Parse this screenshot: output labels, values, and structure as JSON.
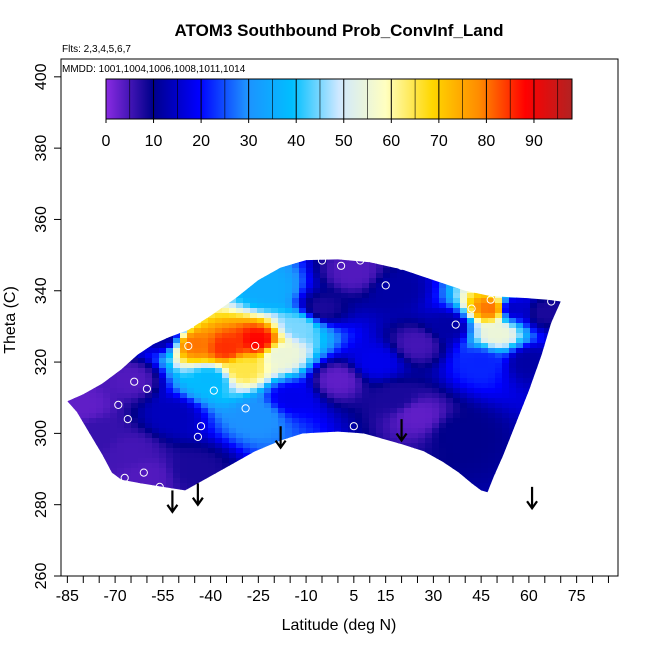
{
  "chart_data": {
    "type": "heatmap",
    "title": "ATOM3 Southbound Prob_ConvInf_Land",
    "flights_label": "Flts: 2,3,4,5,6,7",
    "dates_label": "MMDD: 1001,1004,1006,1008,1011,1014",
    "xlabel": "Latitude (deg N)",
    "ylabel": "Theta (C)",
    "xlim": [
      -87,
      88
    ],
    "ylim": [
      260,
      405
    ],
    "x_ticks": [
      -85,
      -70,
      -55,
      -40,
      -25,
      -10,
      5,
      15,
      30,
      45,
      60,
      75
    ],
    "x_minor_step": 5,
    "y_ticks": [
      260,
      280,
      300,
      320,
      340,
      360,
      380,
      400
    ],
    "colorbar": {
      "range": [
        0,
        98
      ],
      "ticks": [
        0,
        10,
        20,
        30,
        40,
        50,
        60,
        70,
        80,
        90
      ],
      "colors": [
        "#8a2be2",
        "#00008b",
        "#0000ff",
        "#1e90ff",
        "#00bfff",
        "#cfe8ff",
        "#ffffc0",
        "#ffd700",
        "#ff8c00",
        "#ff0000",
        "#b22222"
      ]
    },
    "field": {
      "boundary": [
        [
          -85,
          309
        ],
        [
          -82,
          306
        ],
        [
          -78,
          300
        ],
        [
          -74,
          294
        ],
        [
          -71,
          289
        ],
        [
          -68,
          287
        ],
        [
          -62,
          286
        ],
        [
          -55,
          285
        ],
        [
          -48,
          284
        ],
        [
          -42,
          287
        ],
        [
          -34,
          291
        ],
        [
          -26,
          295
        ],
        [
          -18,
          298
        ],
        [
          -11,
          300
        ],
        [
          0,
          300.5
        ],
        [
          8,
          300
        ],
        [
          14,
          298.5
        ],
        [
          20,
          297
        ],
        [
          27,
          295
        ],
        [
          33,
          292
        ],
        [
          38,
          289
        ],
        [
          42,
          286
        ],
        [
          45,
          284
        ],
        [
          47,
          283.5
        ],
        [
          49,
          288
        ],
        [
          52,
          294
        ],
        [
          56,
          303
        ],
        [
          60,
          312
        ],
        [
          64,
          322
        ],
        [
          67,
          331
        ],
        [
          70,
          337
        ],
        [
          66,
          337.5
        ],
        [
          58,
          338
        ],
        [
          48,
          338.5
        ],
        [
          40,
          340
        ],
        [
          30,
          343
        ],
        [
          20,
          346
        ],
        [
          10,
          348
        ],
        [
          0,
          348.8
        ],
        [
          -10,
          348.6
        ],
        [
          -18,
          346.5
        ],
        [
          -25,
          343
        ],
        [
          -32,
          338
        ],
        [
          -40,
          333
        ],
        [
          -47,
          329
        ],
        [
          -53,
          327
        ],
        [
          -58,
          325
        ],
        [
          -63,
          322
        ],
        [
          -68,
          318
        ],
        [
          -74,
          314
        ],
        [
          -80,
          311
        ]
      ],
      "anchors": [
        {
          "x": -65,
          "y": 315,
          "value": 4
        },
        {
          "x": -55,
          "y": 327,
          "value": 12
        },
        {
          "x": -52,
          "y": 305,
          "value": 14
        },
        {
          "x": -65,
          "y": 295,
          "value": 5
        },
        {
          "x": -45,
          "y": 325,
          "value": 80
        },
        {
          "x": -35,
          "y": 324,
          "value": 85
        },
        {
          "x": -25,
          "y": 326,
          "value": 88
        },
        {
          "x": -30,
          "y": 318,
          "value": 65
        },
        {
          "x": -40,
          "y": 315,
          "value": 38
        },
        {
          "x": -18,
          "y": 322,
          "value": 55
        },
        {
          "x": -22,
          "y": 340,
          "value": 35
        },
        {
          "x": -25,
          "y": 305,
          "value": 30
        },
        {
          "x": -12,
          "y": 330,
          "value": 45
        },
        {
          "x": -15,
          "y": 310,
          "value": 18
        },
        {
          "x": -5,
          "y": 335,
          "value": 8
        },
        {
          "x": 0,
          "y": 315,
          "value": 3
        },
        {
          "x": 5,
          "y": 345,
          "value": 4
        },
        {
          "x": 12,
          "y": 320,
          "value": 18
        },
        {
          "x": 18,
          "y": 310,
          "value": 8
        },
        {
          "x": 18,
          "y": 340,
          "value": 12
        },
        {
          "x": 25,
          "y": 325,
          "value": 5
        },
        {
          "x": 25,
          "y": 305,
          "value": 3
        },
        {
          "x": 35,
          "y": 330,
          "value": 12
        },
        {
          "x": 38,
          "y": 300,
          "value": 10
        },
        {
          "x": 45,
          "y": 320,
          "value": 22
        },
        {
          "x": 48,
          "y": 335,
          "value": 80
        },
        {
          "x": 50,
          "y": 328,
          "value": 55
        },
        {
          "x": 55,
          "y": 335,
          "value": 15
        },
        {
          "x": 60,
          "y": 320,
          "value": 12
        },
        {
          "x": 65,
          "y": 334,
          "value": 8
        },
        {
          "x": -80,
          "y": 308,
          "value": 3
        },
        {
          "x": -75,
          "y": 300,
          "value": 6
        },
        {
          "x": -60,
          "y": 288,
          "value": 4
        },
        {
          "x": -45,
          "y": 290,
          "value": 8
        }
      ]
    },
    "points": [
      {
        "x": -5,
        "y": 348.5
      },
      {
        "x": 1,
        "y": 347
      },
      {
        "x": 7,
        "y": 348.5
      },
      {
        "x": 20,
        "y": 347
      },
      {
        "x": 15,
        "y": 341.5
      },
      {
        "x": 42,
        "y": 335
      },
      {
        "x": 48,
        "y": 337.5
      },
      {
        "x": 67,
        "y": 337
      },
      {
        "x": 37,
        "y": 330.5
      },
      {
        "x": -57,
        "y": 329
      },
      {
        "x": -47,
        "y": 324.5
      },
      {
        "x": -26,
        "y": 324.5
      },
      {
        "x": -64,
        "y": 314.5
      },
      {
        "x": -60,
        "y": 312.5
      },
      {
        "x": -39,
        "y": 312
      },
      {
        "x": -69,
        "y": 308
      },
      {
        "x": -29,
        "y": 307
      },
      {
        "x": -66,
        "y": 304
      },
      {
        "x": -43,
        "y": 302
      },
      {
        "x": -44,
        "y": 299
      },
      {
        "x": 5,
        "y": 302
      },
      {
        "x": -75,
        "y": 289
      },
      {
        "x": -61,
        "y": 289
      },
      {
        "x": -67,
        "y": 287.5
      },
      {
        "x": -56,
        "y": 285
      }
    ],
    "arrows": [
      {
        "x": -52,
        "y_top": 284,
        "y_bottom": 278
      },
      {
        "x": -44,
        "y_top": 286,
        "y_bottom": 280
      },
      {
        "x": -18,
        "y_top": 302,
        "y_bottom": 296
      },
      {
        "x": 20,
        "y_top": 304,
        "y_bottom": 298
      },
      {
        "x": 61,
        "y_top": 285,
        "y_bottom": 279
      }
    ]
  }
}
